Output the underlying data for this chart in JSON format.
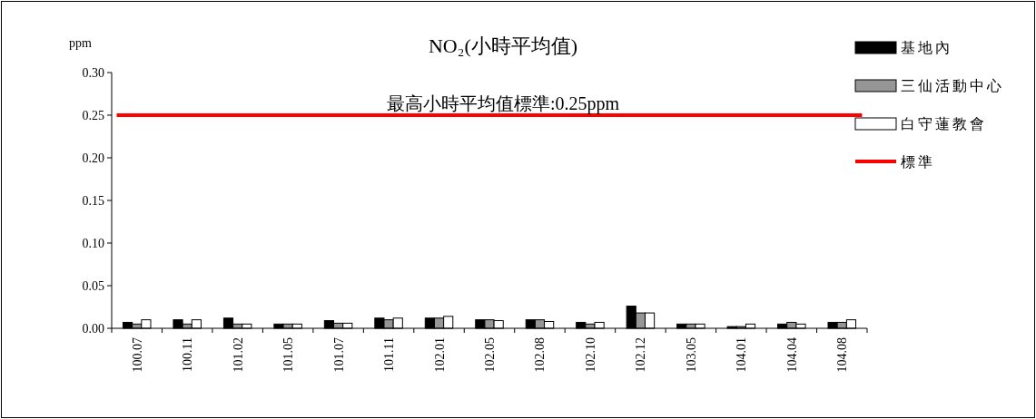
{
  "chart_data": {
    "type": "bar",
    "title": "NO₂(小時平均值)",
    "ylabel": "ppm",
    "categories": [
      "100.07",
      "100.11",
      "101.02",
      "101.05",
      "101.07",
      "101.11",
      "102.01",
      "102.05",
      "102.08",
      "102.10",
      "102.12",
      "103.05",
      "104.01",
      "104.04",
      "104.08"
    ],
    "series": [
      {
        "name": "基地內",
        "color": "#000000",
        "values": [
          0.007,
          0.01,
          0.012,
          0.005,
          0.009,
          0.012,
          0.012,
          0.01,
          0.01,
          0.007,
          0.026,
          0.005,
          0.002,
          0.005,
          0.007
        ]
      },
      {
        "name": "三仙活動中心",
        "color": "#969696",
        "values": [
          0.005,
          0.005,
          0.005,
          0.005,
          0.006,
          0.01,
          0.012,
          0.01,
          0.01,
          0.005,
          0.018,
          0.005,
          0.002,
          0.007,
          0.007
        ]
      },
      {
        "name": "白守蓮教會",
        "color": "#ffffff",
        "values": [
          0.01,
          0.01,
          0.005,
          0.005,
          0.006,
          0.012,
          0.014,
          0.009,
          0.008,
          0.007,
          0.018,
          0.005,
          0.005,
          0.005,
          0.01
        ]
      }
    ],
    "ref_lines": [
      {
        "axis": "y",
        "value": 0.25,
        "label": "標準",
        "color": "#ff0000"
      }
    ],
    "annotations": [
      "最高小時平均值標準:0.25ppm"
    ],
    "ylim": [
      0,
      0.3
    ],
    "yticks": [
      {
        "value": 0,
        "label": "0.00"
      },
      {
        "value": 0.05,
        "label": "0.05"
      },
      {
        "value": 0.1,
        "label": "0.10"
      },
      {
        "value": 0.15,
        "label": "0.15"
      },
      {
        "value": 0.2,
        "label": "0.20"
      },
      {
        "value": 0.25,
        "label": "0.25"
      },
      {
        "value": 0.3,
        "label": "0.30"
      }
    ],
    "legend": "right",
    "grid": false
  }
}
